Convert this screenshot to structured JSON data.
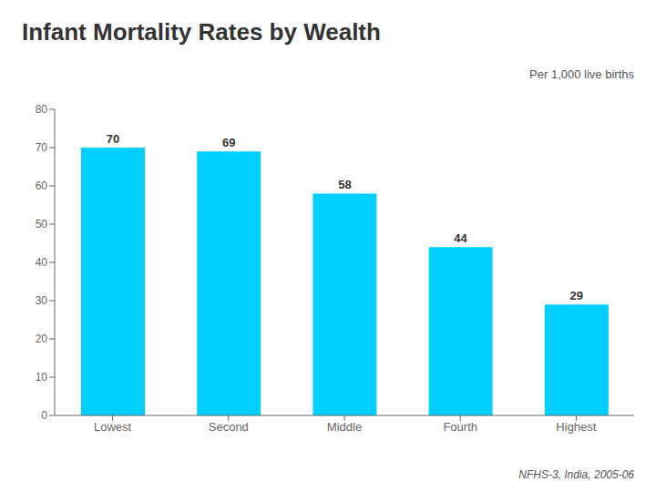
{
  "chart_data": {
    "type": "bar",
    "title": "Infant Mortality Rates by Wealth",
    "subtitle": "Per 1,000 live births",
    "annotations": [
      "NFHS-3, India, 2005-06"
    ],
    "categories": [
      "Lowest",
      "Second",
      "Middle",
      "Fourth",
      "Highest"
    ],
    "values": [
      70,
      69,
      58,
      44,
      29
    ],
    "color": "#00CFFF",
    "ylim": [
      0,
      80
    ],
    "yticks": [
      0,
      10,
      20,
      30,
      40,
      50,
      60,
      70,
      80
    ],
    "grid": false,
    "data_labels": true
  }
}
